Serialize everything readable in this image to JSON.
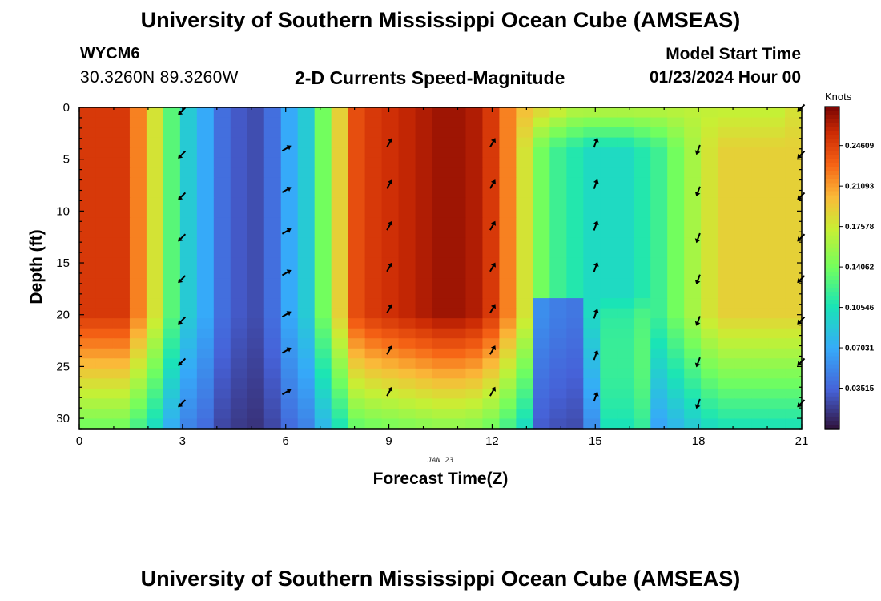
{
  "header": {
    "title": "University of Southern Mississippi Ocean Cube (AMSEAS)",
    "station_id": "WYCM6",
    "station_coords": "30.3260N  89.3260W",
    "subtitle": "2-D Currents Speed-Magnitude",
    "model_start_label": "Model Start Time",
    "model_start_value": "01/23/2024 Hour 00"
  },
  "footer": {
    "title": "University of Southern Mississippi Ocean Cube (AMSEAS)"
  },
  "chart_data": {
    "type": "heatmap",
    "title": "2-D Currents Speed-Magnitude",
    "xlabel": "Forecast Time(Z)",
    "ylabel": "Depth (ft)",
    "date_label": "JAN 23",
    "x_ticks": [
      0,
      3,
      6,
      9,
      12,
      15,
      18,
      21
    ],
    "x_tick_labels": [
      "0",
      "3",
      "6",
      "9",
      "12",
      "15",
      "18",
      "21"
    ],
    "y_ticks": [
      0,
      5,
      10,
      15,
      20,
      25,
      30
    ],
    "y_tick_labels": [
      "0",
      "5",
      "10",
      "15",
      "20",
      "25",
      "30"
    ],
    "xlim": [
      0,
      21
    ],
    "ylim": [
      0,
      31
    ],
    "y_inverted": true,
    "colorbar": {
      "label": "Knots",
      "tick_values": [
        0.24609,
        0.21093,
        0.17578,
        0.14062,
        0.10546,
        0.07031,
        0.03515
      ],
      "tick_labels": [
        "0.24609",
        "0.21093",
        "0.17578",
        "0.14062",
        "0.10546",
        "0.07031",
        "0.03515"
      ],
      "range": [
        0,
        0.28
      ]
    },
    "time_profile_knots": [
      0.25,
      0.25,
      0.25,
      0.22,
      0.18,
      0.13,
      0.09,
      0.07,
      0.04,
      0.03,
      0.025,
      0.04,
      0.07,
      0.09,
      0.14,
      0.19,
      0.24,
      0.25,
      0.255,
      0.26,
      0.265,
      0.27,
      0.27,
      0.265,
      0.25,
      0.22,
      0.18,
      0.14,
      0.12,
      0.11,
      0.1,
      0.1,
      0.1,
      0.11,
      0.12,
      0.14,
      0.16,
      0.18,
      0.19,
      0.19,
      0.19,
      0.19,
      0.19
    ],
    "surface_profile_knots": [
      0.25,
      0.25,
      0.25,
      0.22,
      0.18,
      0.13,
      0.09,
      0.07,
      0.04,
      0.03,
      0.025,
      0.04,
      0.07,
      0.09,
      0.14,
      0.19,
      0.24,
      0.25,
      0.255,
      0.26,
      0.265,
      0.27,
      0.27,
      0.265,
      0.25,
      0.22,
      0.2,
      0.19,
      0.18,
      0.17,
      0.17,
      0.17,
      0.17,
      0.17,
      0.17,
      0.17,
      0.17,
      0.17,
      0.17,
      0.17,
      0.17,
      0.17,
      0.18
    ],
    "arrows": [
      {
        "time": 3,
        "depths": [
          0.3,
          4.5,
          8.5,
          12.5,
          16.5,
          20.5,
          24.5,
          28.5
        ],
        "dir_deg": 225
      },
      {
        "time": 6,
        "depths": [
          4,
          8,
          12,
          16,
          20,
          23.5,
          27.5
        ],
        "dir_deg": 60
      },
      {
        "time": 9,
        "depths": [
          3.5,
          7.5,
          11.5,
          15.5,
          19.5,
          23.5,
          27.5
        ],
        "dir_deg": 30
      },
      {
        "time": 12,
        "depths": [
          3.5,
          7.5,
          11.5,
          15.5,
          19.5,
          23.5,
          27.5
        ],
        "dir_deg": 30
      },
      {
        "time": 15,
        "depths": [
          3.5,
          7.5,
          11.5,
          15.5,
          20,
          24,
          28
        ],
        "dir_deg": 20
      },
      {
        "time": 18,
        "depths": [
          4,
          8,
          12.5,
          16.5,
          20.5,
          24.5,
          28.5
        ],
        "dir_deg": 200
      },
      {
        "time": 21,
        "depths": [
          0,
          4.5,
          8.5,
          12.5,
          16.5,
          20.5,
          24.5,
          28.5
        ],
        "dir_deg": 225
      }
    ]
  }
}
